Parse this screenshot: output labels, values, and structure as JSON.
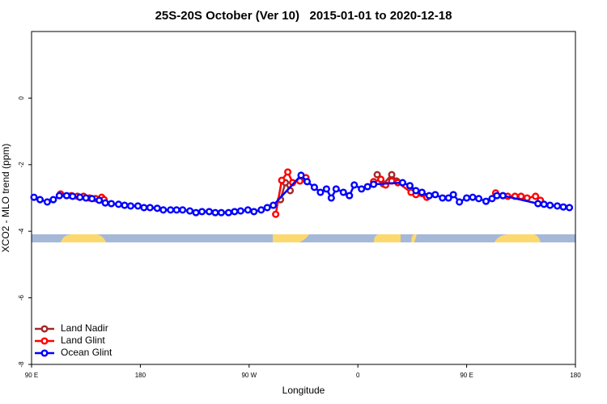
{
  "chart_data": {
    "type": "line",
    "title": "25S-20S October (Ver 10)   2015-01-01 to 2020-12-18",
    "x_label": "Longitude",
    "y_label": "XCO2 - MLO trend (ppm)",
    "xlim": [
      90,
      540
    ],
    "ylim": [
      -8,
      2
    ],
    "xticks": [
      {
        "value": 90,
        "label": "90 E"
      },
      {
        "value": 180,
        "label": "180"
      },
      {
        "value": 270,
        "label": "90 W"
      },
      {
        "value": 360,
        "label": "0"
      },
      {
        "value": 450,
        "label": "90 E"
      },
      {
        "value": 540,
        "label": "180"
      }
    ],
    "yticks": [
      -8,
      -6,
      -4,
      -2,
      0
    ],
    "legend": "bottom-left",
    "series": [
      {
        "name": "Land Nadir",
        "color": "#a52a2a",
        "x": [
          296,
          300,
          304,
          340,
          376,
          381,
          388,
          392
        ],
        "values": [
          -3.05,
          -2.54,
          -2.78,
          null,
          -2.3,
          -2.58,
          -2.3,
          -2.49
        ]
      },
      {
        "name": "Land Glint",
        "color": "#ff0000",
        "x": [
          114,
          123,
          128,
          133,
          138,
          143,
          148,
          150,
          220,
          292,
          297,
          302,
          306,
          312,
          317,
          345,
          373,
          379,
          383,
          388,
          393,
          404,
          408,
          417,
          445,
          474,
          480,
          484,
          490,
          495,
          500,
          507,
          511
        ],
        "values": [
          -2.88,
          -2.93,
          -2.95,
          -2.95,
          -3.0,
          -3.02,
          -2.98,
          -3.05,
          null,
          -3.49,
          -2.47,
          -2.22,
          -2.54,
          -2.49,
          -2.39,
          null,
          -2.51,
          -2.44,
          -2.61,
          -2.49,
          -2.54,
          -2.83,
          -2.9,
          -2.98,
          null,
          -2.85,
          -2.93,
          -2.95,
          -2.95,
          -2.95,
          -3.0,
          -2.95,
          -3.07
        ]
      },
      {
        "name": "Ocean Glint",
        "color": "#0000ff",
        "x": [
          92,
          97,
          103,
          108,
          113,
          119,
          124,
          130,
          135,
          140,
          146,
          151,
          156,
          162,
          167,
          172,
          178,
          183,
          188,
          194,
          199,
          205,
          210,
          215,
          221,
          226,
          231,
          237,
          242,
          247,
          253,
          258,
          263,
          269,
          274,
          280,
          285,
          290,
          313,
          318,
          324,
          329,
          334,
          338,
          342,
          348,
          353,
          357,
          363,
          368,
          373,
          397,
          403,
          408,
          413,
          419,
          424,
          430,
          435,
          439,
          444,
          450,
          455,
          460,
          466,
          471,
          475,
          480,
          509,
          514,
          519,
          525,
          530,
          535
        ],
        "values": [
          -2.98,
          -3.05,
          -3.12,
          -3.05,
          -2.93,
          -2.93,
          -2.95,
          -2.98,
          -3.0,
          -3.02,
          -3.07,
          -3.15,
          -3.17,
          -3.19,
          -3.22,
          -3.24,
          -3.24,
          -3.29,
          -3.29,
          -3.31,
          -3.36,
          -3.36,
          -3.36,
          -3.36,
          -3.39,
          -3.44,
          -3.41,
          -3.41,
          -3.44,
          -3.44,
          -3.44,
          -3.41,
          -3.39,
          -3.36,
          -3.41,
          -3.36,
          -3.29,
          -3.22,
          -2.32,
          -2.51,
          -2.68,
          -2.83,
          -2.73,
          -3.0,
          -2.73,
          -2.83,
          -2.93,
          -2.61,
          -2.73,
          -2.66,
          -2.59,
          -2.54,
          -2.63,
          -2.78,
          -2.83,
          -2.93,
          -2.9,
          -3.0,
          -3.0,
          -2.9,
          -3.12,
          -3.0,
          -2.98,
          -3.02,
          -3.1,
          -3.02,
          -2.93,
          -2.93,
          -3.17,
          -3.19,
          -3.22,
          -3.24,
          -3.27,
          -3.29
        ]
      }
    ]
  }
}
